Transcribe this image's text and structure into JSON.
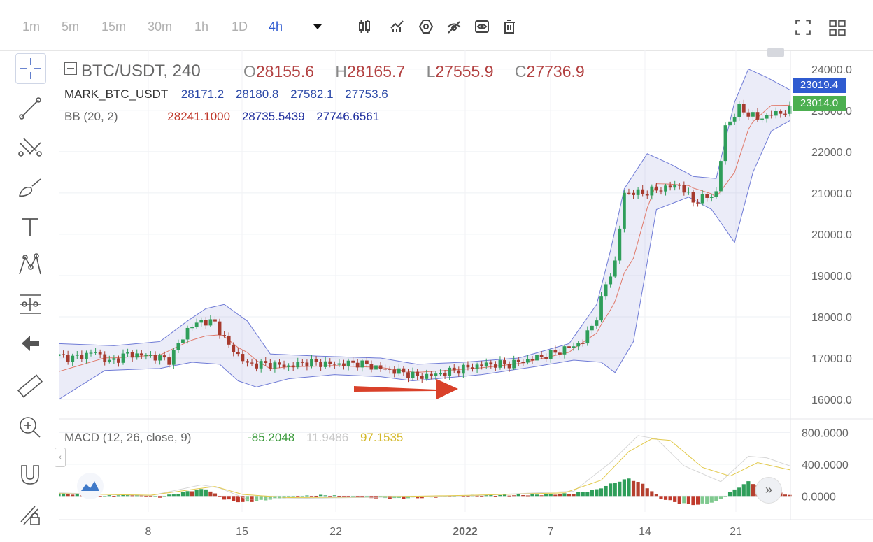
{
  "toolbar": {
    "timeframes": [
      "1m",
      "5m",
      "15m",
      "30m",
      "1h",
      "1D",
      "4h"
    ],
    "active_timeframe": "4h",
    "dropdown_icon": "caret-down-icon",
    "tools": [
      "candle-type-icon",
      "indicators-icon",
      "settings-hex-icon",
      "hide-drawings-icon",
      "eye-icon",
      "trash-icon"
    ],
    "right_tools": [
      "fullscreen-icon",
      "layout-grid-icon"
    ]
  },
  "sidebar": {
    "tools": [
      "crosshair-icon",
      "trendline-icon",
      "fib-icon",
      "brush-icon",
      "text-icon",
      "pattern-icon",
      "measure-icon",
      "back-arrow-icon",
      "ruler-icon",
      "zoom-icon",
      "magnet-icon",
      "lock-pencil-icon"
    ]
  },
  "legend": {
    "symbol": "BTC/USDT, 240",
    "o_label": "O",
    "o_value": "28155.6",
    "h_label": "H",
    "h_value": "28165.7",
    "l_label": "L",
    "l_value": "27555.9",
    "c_label": "C",
    "c_value": "27736.9",
    "mark_label": "MARK_BTC_USDT",
    "mark_values": [
      "28171.2",
      "28180.8",
      "27582.1",
      "27753.6"
    ],
    "bb_label": "BB (20, 2)",
    "bb_values": [
      "28241.1000",
      "28735.5439",
      "27746.6561"
    ],
    "macd_label": "MACD (12, 26, close, 9)",
    "macd_values": [
      "-85.2048",
      "11.9486",
      "97.1535"
    ]
  },
  "price_badges": {
    "upper": "23019.4",
    "last": "23014.0"
  },
  "chart_data": {
    "type": "candlestick",
    "title": "BTC/USDT, 240",
    "price_axis_ticks": [
      "24000.0",
      "23000.0",
      "22000.0",
      "21000.0",
      "20000.0",
      "19000.0",
      "18000.0",
      "17000.0",
      "16000.0"
    ],
    "price_ylim": [
      15900,
      24250
    ],
    "macd_axis_ticks": [
      "800.0000",
      "400.0000",
      "0.0000"
    ],
    "macd_ylim": [
      -200,
      900
    ],
    "x_ticks": [
      "8",
      "15",
      "22",
      "2022",
      "7",
      "14",
      "21"
    ],
    "series": [
      {
        "name": "close (approx.)",
        "points": [
          [
            0,
            17050
          ],
          [
            3,
            17000
          ],
          [
            8,
            17150
          ],
          [
            11,
            16900
          ],
          [
            15,
            17100
          ],
          [
            20,
            17050
          ],
          [
            24,
            16950
          ],
          [
            28,
            17700
          ],
          [
            31,
            17900
          ],
          [
            34,
            17850
          ],
          [
            37,
            17300
          ],
          [
            41,
            16850
          ],
          [
            46,
            16850
          ],
          [
            50,
            16800
          ],
          [
            54,
            16900
          ],
          [
            60,
            16850
          ],
          [
            65,
            16880
          ],
          [
            70,
            16750
          ],
          [
            75,
            16650
          ],
          [
            78,
            16550
          ],
          [
            82,
            16600
          ],
          [
            88,
            16750
          ],
          [
            93,
            16850
          ],
          [
            98,
            16850
          ],
          [
            102,
            16950
          ],
          [
            107,
            17100
          ],
          [
            111,
            17250
          ],
          [
            114,
            17400
          ],
          [
            117,
            18000
          ],
          [
            119,
            18800
          ],
          [
            121,
            19300
          ],
          [
            123,
            21000
          ],
          [
            127,
            21000
          ],
          [
            131,
            21100
          ],
          [
            135,
            21200
          ],
          [
            138,
            20800
          ],
          [
            141,
            20900
          ],
          [
            143,
            21000
          ],
          [
            145,
            22600
          ],
          [
            148,
            23050
          ],
          [
            152,
            22800
          ],
          [
            155,
            22900
          ],
          [
            159,
            23000
          ]
        ]
      },
      {
        "name": "BB upper (approx.)",
        "points": [
          [
            0,
            17350
          ],
          [
            12,
            17300
          ],
          [
            22,
            17400
          ],
          [
            28,
            17900
          ],
          [
            32,
            18200
          ],
          [
            36,
            18300
          ],
          [
            41,
            17900
          ],
          [
            46,
            17100
          ],
          [
            56,
            17050
          ],
          [
            70,
            17000
          ],
          [
            78,
            16850
          ],
          [
            88,
            16900
          ],
          [
            100,
            17000
          ],
          [
            111,
            17350
          ],
          [
            117,
            18300
          ],
          [
            120,
            19600
          ],
          [
            123,
            21100
          ],
          [
            128,
            21950
          ],
          [
            133,
            21700
          ],
          [
            138,
            21400
          ],
          [
            143,
            21350
          ],
          [
            147,
            23200
          ],
          [
            150,
            24000
          ],
          [
            154,
            23800
          ],
          [
            159,
            23500
          ]
        ]
      },
      {
        "name": "BB lower (approx.)",
        "points": [
          [
            0,
            16000
          ],
          [
            10,
            16700
          ],
          [
            22,
            16750
          ],
          [
            29,
            16900
          ],
          [
            35,
            16850
          ],
          [
            39,
            16450
          ],
          [
            43,
            16300
          ],
          [
            50,
            16500
          ],
          [
            60,
            16600
          ],
          [
            70,
            16550
          ],
          [
            77,
            16450
          ],
          [
            82,
            16500
          ],
          [
            92,
            16600
          ],
          [
            104,
            16800
          ],
          [
            112,
            16950
          ],
          [
            118,
            16900
          ],
          [
            121,
            16650
          ],
          [
            125,
            17400
          ],
          [
            130,
            20600
          ],
          [
            137,
            20900
          ],
          [
            142,
            20600
          ],
          [
            147,
            19800
          ],
          [
            151,
            21500
          ],
          [
            155,
            22500
          ],
          [
            159,
            22750
          ]
        ]
      }
    ],
    "macd_histogram": [
      [
        0,
        40
      ],
      [
        8,
        -10
      ],
      [
        15,
        20
      ],
      [
        22,
        -15
      ],
      [
        28,
        60
      ],
      [
        32,
        90
      ],
      [
        36,
        -40
      ],
      [
        40,
        -80
      ],
      [
        45,
        -50
      ],
      [
        50,
        -10
      ],
      [
        58,
        10
      ],
      [
        66,
        -20
      ],
      [
        74,
        -30
      ],
      [
        80,
        -20
      ],
      [
        88,
        5
      ],
      [
        96,
        10
      ],
      [
        104,
        15
      ],
      [
        112,
        30
      ],
      [
        117,
        80
      ],
      [
        120,
        150
      ],
      [
        124,
        220
      ],
      [
        127,
        150
      ],
      [
        131,
        -30
      ],
      [
        135,
        -90
      ],
      [
        139,
        -110
      ],
      [
        143,
        -70
      ],
      [
        147,
        80
      ],
      [
        150,
        180
      ],
      [
        154,
        90
      ],
      [
        159,
        10
      ]
    ],
    "annotation": "red arrow"
  }
}
